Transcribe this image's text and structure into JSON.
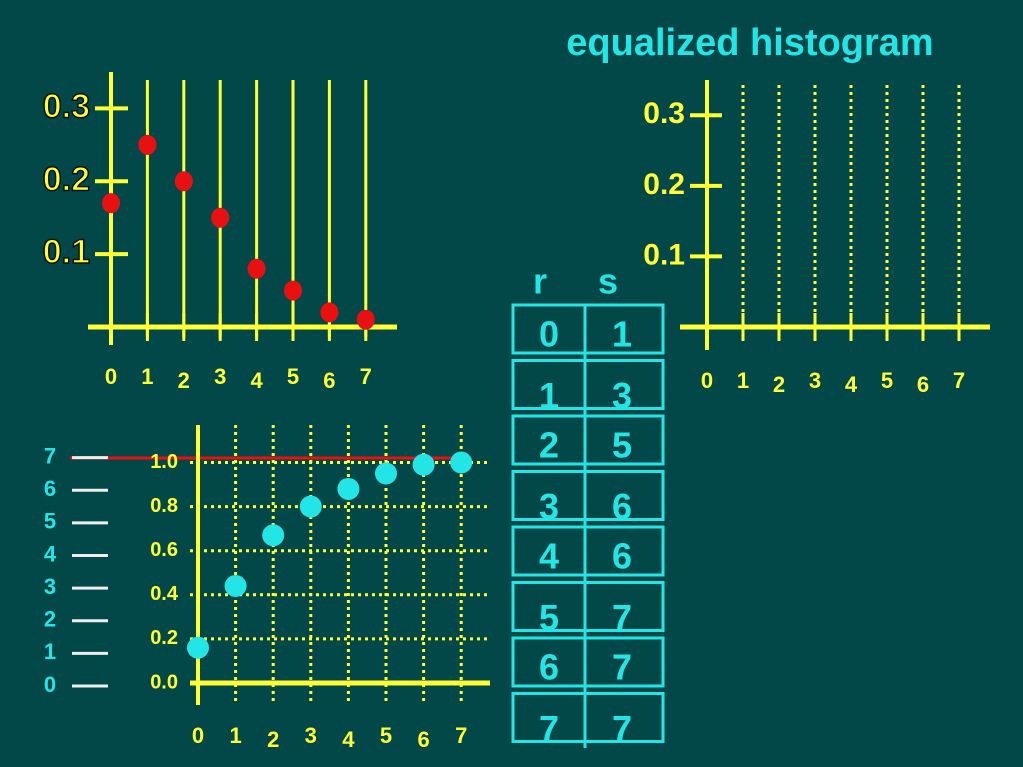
{
  "chart_data": [
    {
      "type": "stem",
      "categories": [
        "0",
        "1",
        "2",
        "3",
        "4",
        "5",
        "6",
        "7"
      ],
      "values": [
        0.17,
        0.25,
        0.2,
        0.15,
        0.08,
        0.05,
        0.02,
        0.01
      ],
      "color": "#e81010",
      "ylim": [
        0,
        0.35
      ],
      "yticks": [
        0.1,
        0.2,
        0.3
      ]
    },
    {
      "type": "stem",
      "title": "equalized histogram",
      "categories": [
        "0",
        "1",
        "2",
        "3",
        "4",
        "5",
        "6",
        "7"
      ],
      "ylim": [
        0,
        0.35
      ],
      "yticks": [
        0.1,
        0.2,
        0.3
      ]
    },
    {
      "type": "scatter",
      "categories": [
        "0",
        "1",
        "2",
        "3",
        "4",
        "5",
        "6",
        "7"
      ],
      "values": [
        0.16,
        0.44,
        0.67,
        0.8,
        0.88,
        0.95,
        0.99,
        1.0
      ],
      "color": "#22e5e5",
      "ylim": [
        0,
        1.17
      ],
      "yticks": [
        {
          "value": 0,
          "label": "0.0"
        },
        0.2,
        0.4,
        0.6,
        0.8,
        {
          "value": 1,
          "label": "1.0"
        }
      ],
      "y2lim": [
        0,
        8
      ],
      "y2ticks": [
        0,
        1,
        2,
        3,
        4,
        5,
        6,
        7
      ],
      "grid": true
    }
  ],
  "table": {
    "header": [
      "r",
      "s"
    ],
    "rows": [
      [
        0,
        1
      ],
      [
        1,
        3
      ],
      [
        2,
        5
      ],
      [
        3,
        6
      ],
      [
        4,
        6
      ],
      [
        5,
        7
      ],
      [
        6,
        7
      ],
      [
        7,
        7
      ]
    ]
  }
}
